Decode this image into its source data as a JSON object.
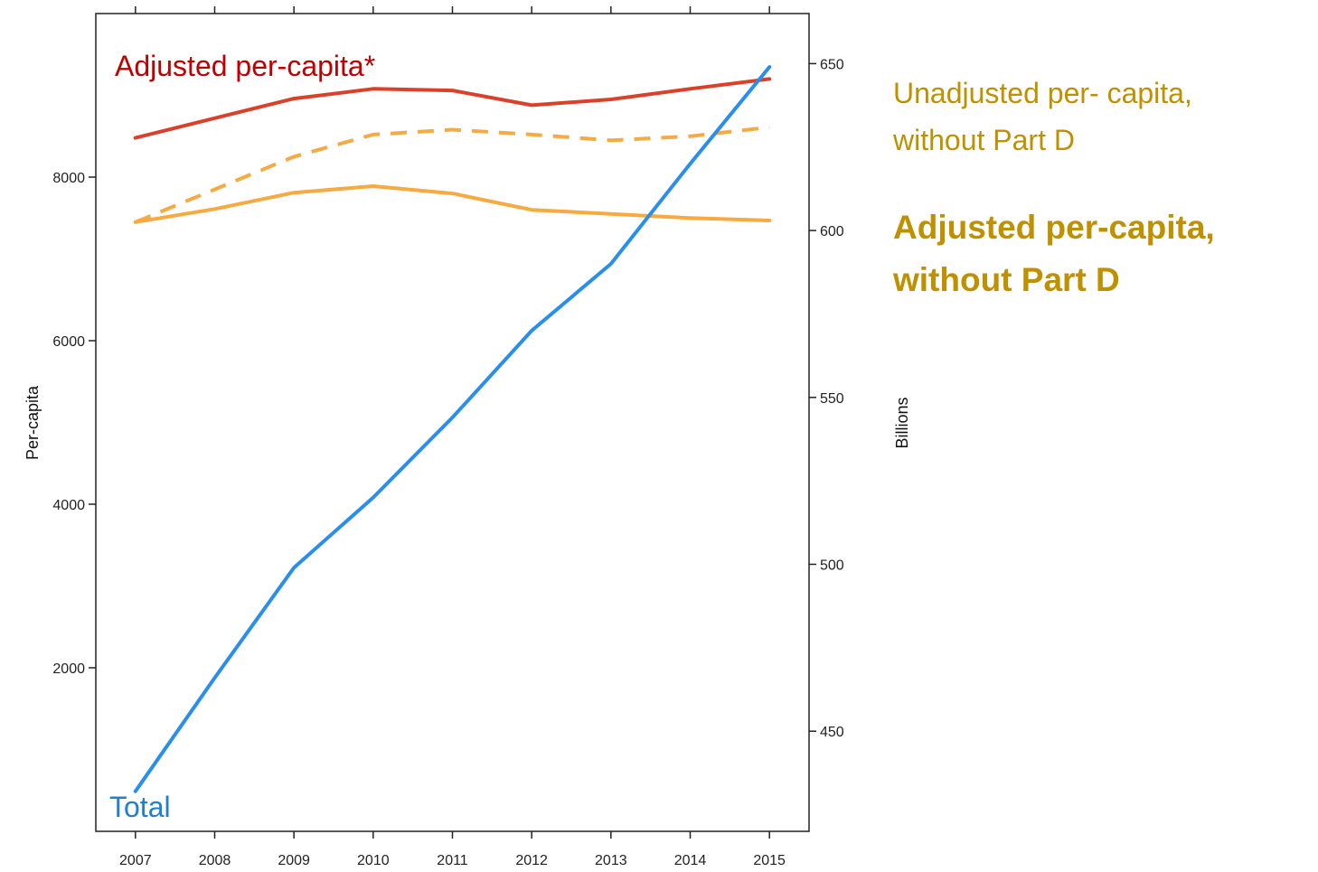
{
  "chart_data": {
    "type": "line",
    "x": [
      2007,
      2008,
      2009,
      2010,
      2011,
      2012,
      2013,
      2014,
      2015
    ],
    "xlim": [
      2006.5,
      2015.5
    ],
    "ylabel": "Per-capita",
    "ylim": [
      0,
      10000
    ],
    "y_ticks": [
      2000,
      4000,
      6000,
      8000
    ],
    "y2label": "Billions",
    "y2lim": [
      420,
      665
    ],
    "y2_ticks": [
      450,
      500,
      550,
      600,
      650
    ],
    "grid": false,
    "series": [
      {
        "name": "Adjusted per-capita*",
        "axis": "left",
        "color": "#d9412b",
        "dash": "solid",
        "values": [
          8480,
          8720,
          8960,
          9080,
          9060,
          8880,
          8950,
          9080,
          9200
        ]
      },
      {
        "name": "Unadjusted per- capita, without Part D",
        "axis": "left",
        "color": "#f7a942",
        "dash": "dashed",
        "values": [
          7450,
          7850,
          8250,
          8520,
          8580,
          8520,
          8450,
          8500,
          8610
        ]
      },
      {
        "name": "Adjusted per-capita, without Part D",
        "axis": "left",
        "color": "#f7a942",
        "dash": "solid",
        "values": [
          7450,
          7610,
          7810,
          7890,
          7800,
          7600,
          7550,
          7500,
          7470
        ]
      },
      {
        "name": "Total",
        "axis": "right",
        "color": "#2a8ef0",
        "dash": "solid",
        "values": [
          432,
          466,
          499,
          520,
          544,
          570,
          590,
          620,
          649
        ]
      }
    ]
  },
  "labels": {
    "adjusted": {
      "text": "Adjusted per-capita*",
      "color": "#c00000"
    },
    "total": {
      "text": "Total",
      "color": "#1f7fd1"
    },
    "unadjusted_side": {
      "line1": "Unadjusted per- capita,",
      "line2": "without Part D",
      "color": "#bf9000"
    },
    "adjusted_side": {
      "line1": "Adjusted per-capita,",
      "line2": "without Part D",
      "color": "#bf9000"
    }
  }
}
